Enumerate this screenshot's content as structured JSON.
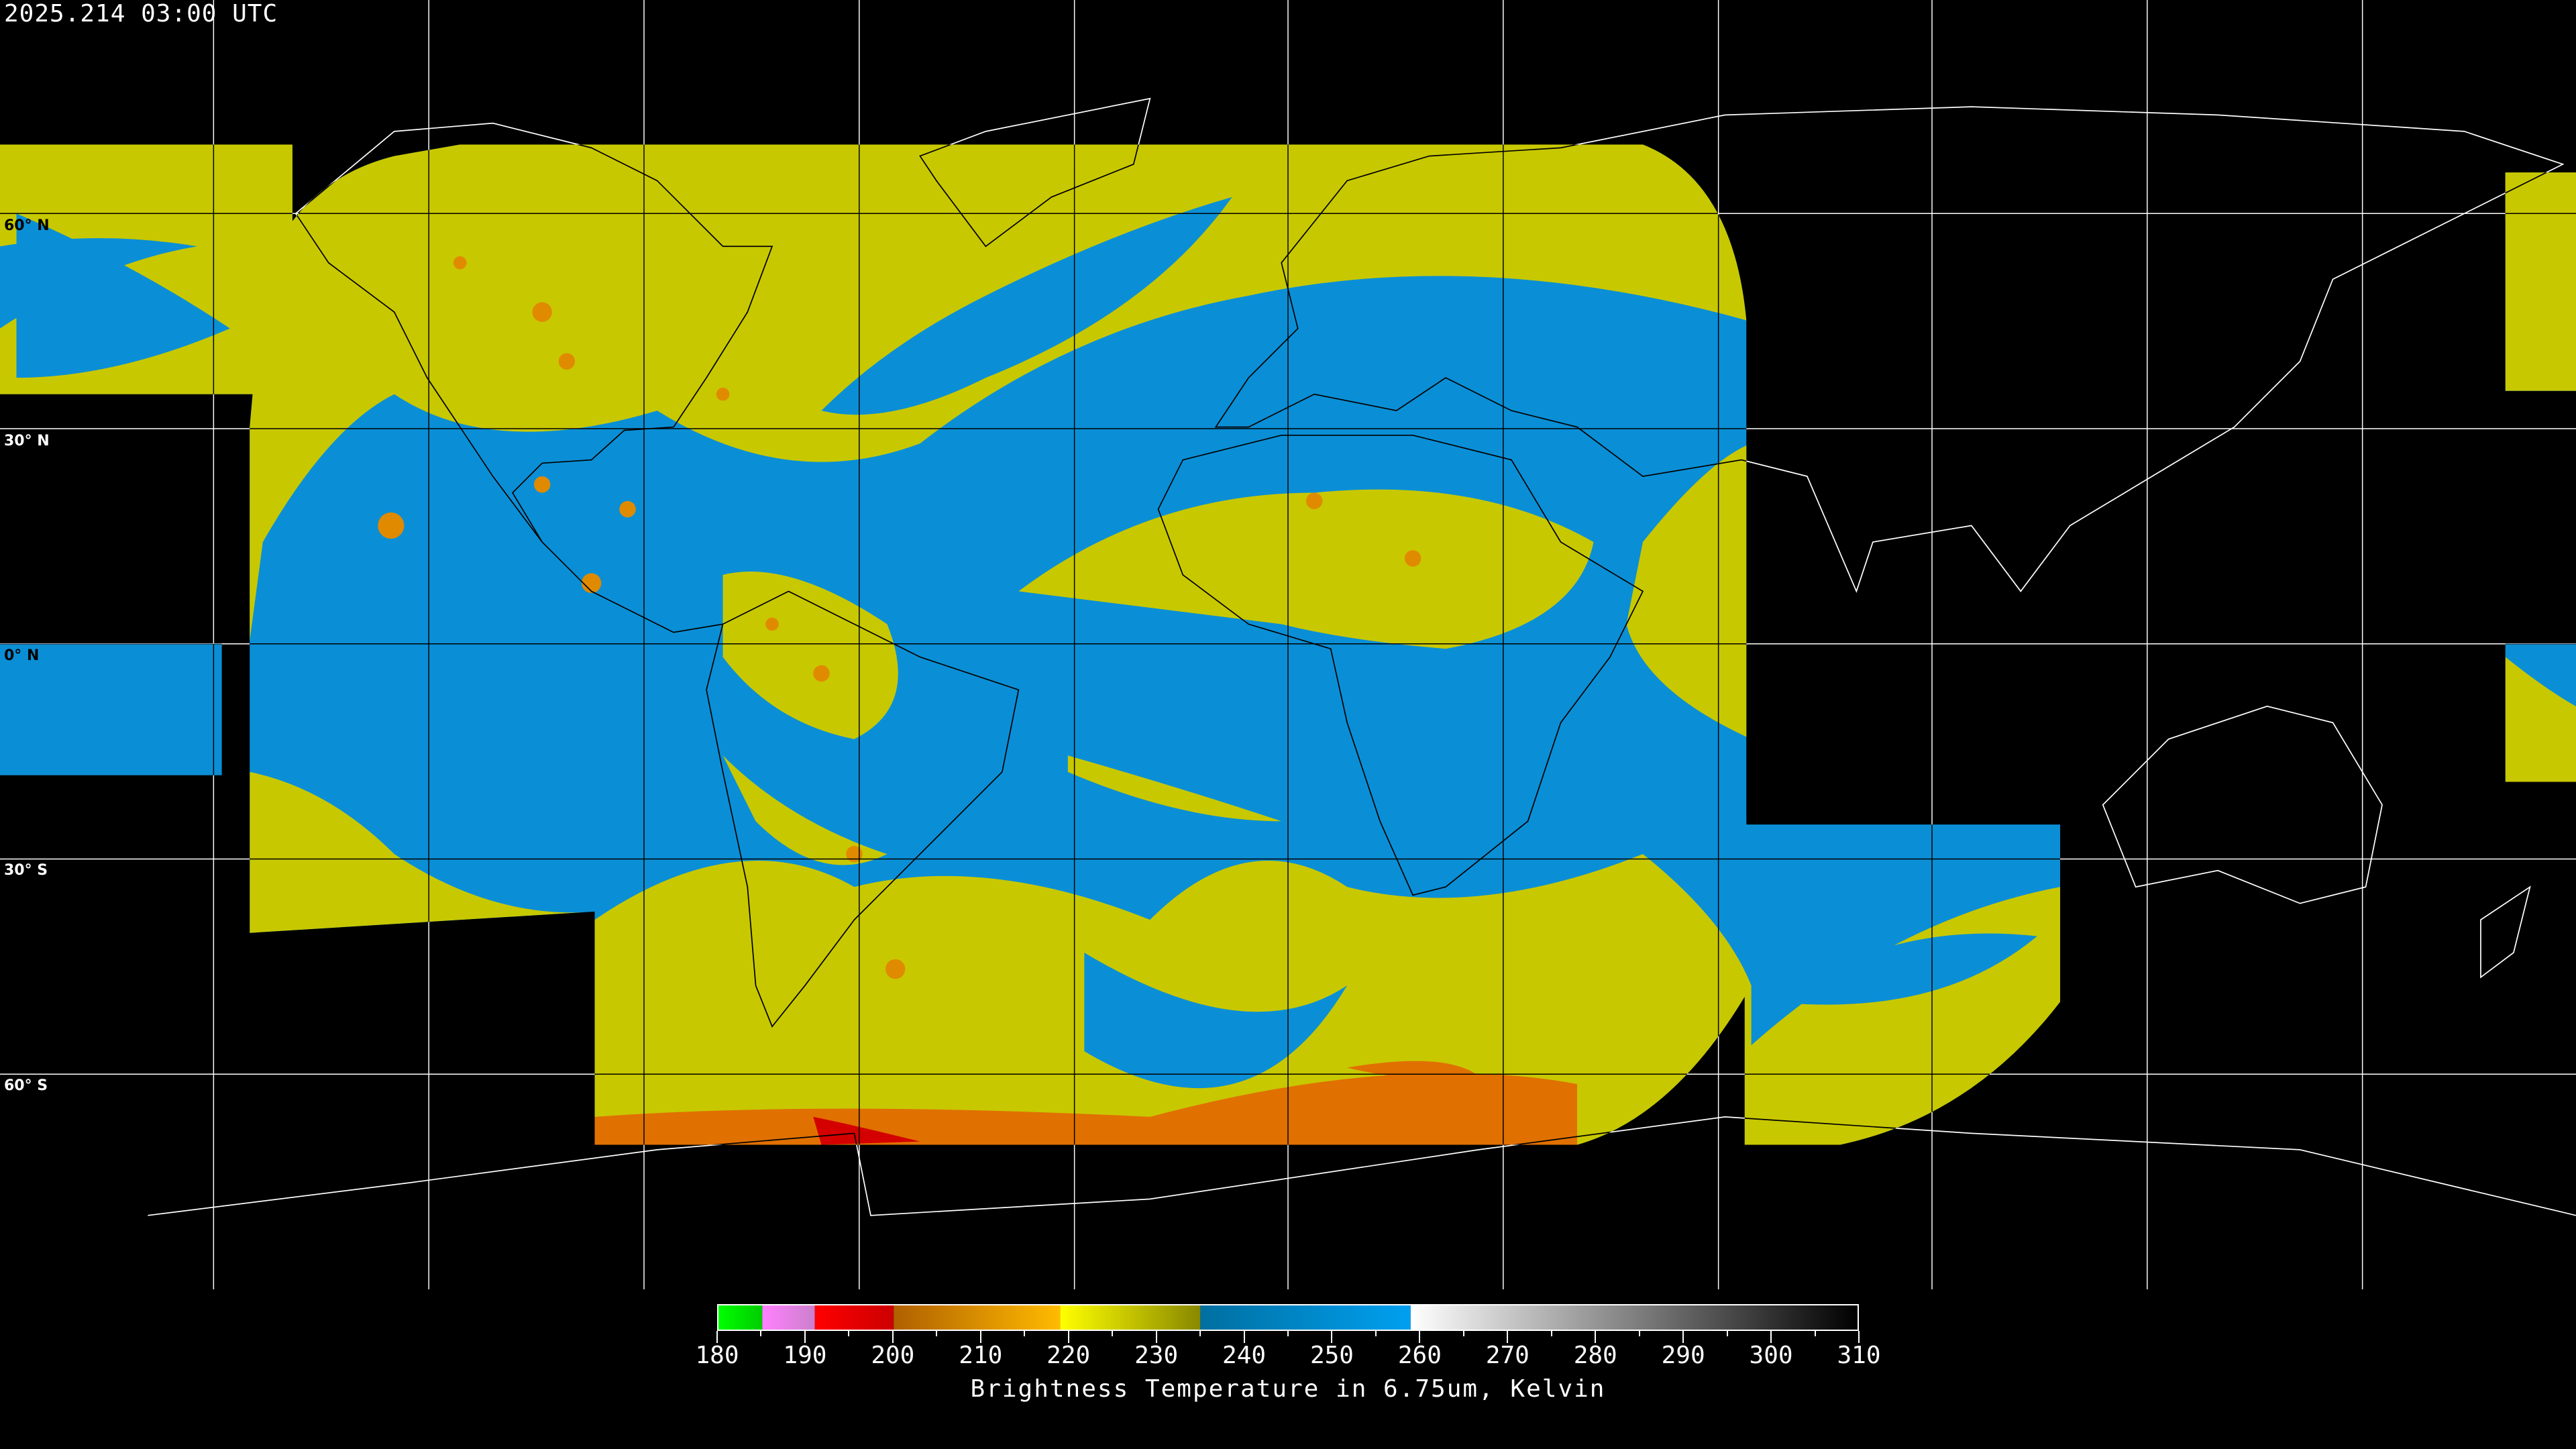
{
  "header": {
    "timestamp": "2025.214 03:00 UTC"
  },
  "map": {
    "projection": "equirectangular",
    "lon_range": [
      -180,
      180
    ],
    "lat_range": [
      -90,
      90
    ],
    "graticule_spacing_deg": 30,
    "lat_labels": [
      {
        "text": "60° N",
        "lat": 60,
        "color": "#000000"
      },
      {
        "text": "30° N",
        "lat": 30,
        "color": "#ffffff"
      },
      {
        "text": "0° N",
        "lat": 0,
        "color": "#000000"
      },
      {
        "text": "30° S",
        "lat": -30,
        "color": "#ffffff"
      },
      {
        "text": "60° S",
        "lat": -60,
        "color": "#ffffff"
      }
    ],
    "colors": {
      "cold_cloud": "#c8c800",
      "dry_air": "#0a8fd6",
      "coastline": "#ffffff",
      "background": "#000000"
    }
  },
  "colorbar": {
    "title": "Brightness Temperature in 6.75um, Kelvin",
    "min": 180,
    "max": 310,
    "tick_labels": [
      "180",
      "190",
      "200",
      "210",
      "220",
      "230",
      "240",
      "250",
      "260",
      "270",
      "280",
      "290",
      "300",
      "310"
    ],
    "segments": [
      {
        "from": 180,
        "to": 185,
        "c1": "#00ff00",
        "c2": "#00cc00"
      },
      {
        "from": 185,
        "to": 191,
        "c1": "#ff80ff",
        "c2": "#cc80cc"
      },
      {
        "from": 191,
        "to": 200,
        "c1": "#ff0000",
        "c2": "#cc0000"
      },
      {
        "from": 200,
        "to": 219,
        "c1": "#b06000",
        "c2": "#ffbb00"
      },
      {
        "from": 219,
        "to": 235,
        "c1": "#ffff00",
        "c2": "#888800"
      },
      {
        "from": 235,
        "to": 259,
        "c1": "#006fa0",
        "c2": "#00a0f0"
      },
      {
        "from": 259,
        "to": 310,
        "c1": "#ffffff",
        "c2": "#000000"
      }
    ]
  }
}
